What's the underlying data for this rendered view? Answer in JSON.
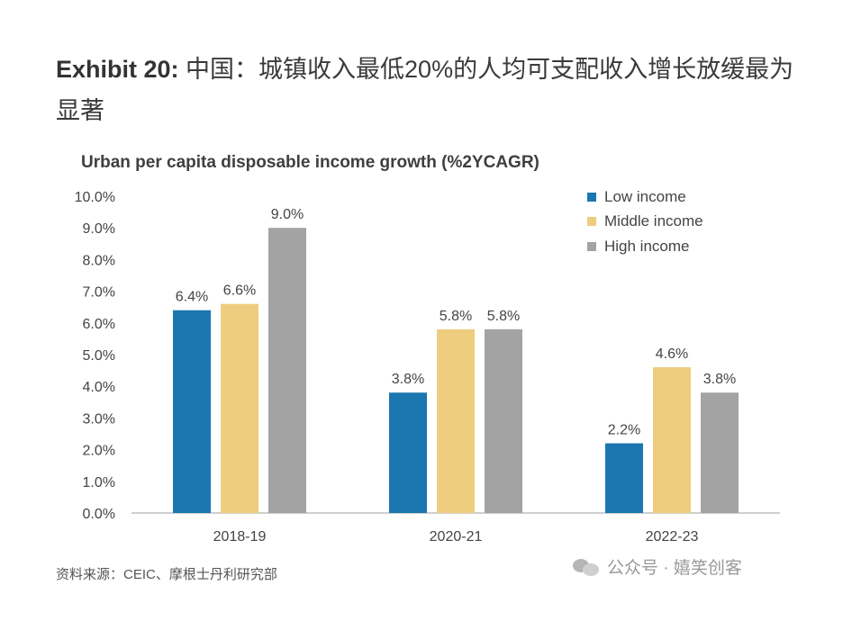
{
  "header": {
    "exhibit": "Exhibit 20:",
    "title": " 中国：城镇收入最低20%的人均可支配收入增长放缓最为显著"
  },
  "chart_data": {
    "type": "bar",
    "title": "Urban per capita disposable income growth (%2YCAGR)",
    "xlabel": "",
    "ylabel": "",
    "categories": [
      "2018-19",
      "2020-21",
      "2022-23"
    ],
    "series": [
      {
        "name": "Low income",
        "color": "#1a77b0",
        "values": [
          6.4,
          3.8,
          2.2
        ],
        "labels": [
          "6.4%",
          "3.8%",
          "2.2%"
        ]
      },
      {
        "name": "Middle income",
        "color": "#efcd7e",
        "values": [
          6.6,
          5.8,
          4.6
        ],
        "labels": [
          "6.6%",
          "5.8%",
          "4.6%"
        ]
      },
      {
        "name": "High income",
        "color": "#a3a3a3",
        "values": [
          9.0,
          5.8,
          3.8
        ],
        "labels": [
          "9.0%",
          "5.8%",
          "3.8%"
        ]
      }
    ],
    "ylim": [
      0,
      10
    ],
    "yticks": [
      "0.0%",
      "1.0%",
      "2.0%",
      "3.0%",
      "4.0%",
      "5.0%",
      "6.0%",
      "7.0%",
      "8.0%",
      "9.0%",
      "10.0%"
    ],
    "legend_position": "top-right",
    "grid": false
  },
  "footer": {
    "source": "资料来源：CEIC、摩根士丹利研究部",
    "watermark": "公众号 · 嬉笑创客",
    "watermark_icon": "wechat-icon"
  }
}
